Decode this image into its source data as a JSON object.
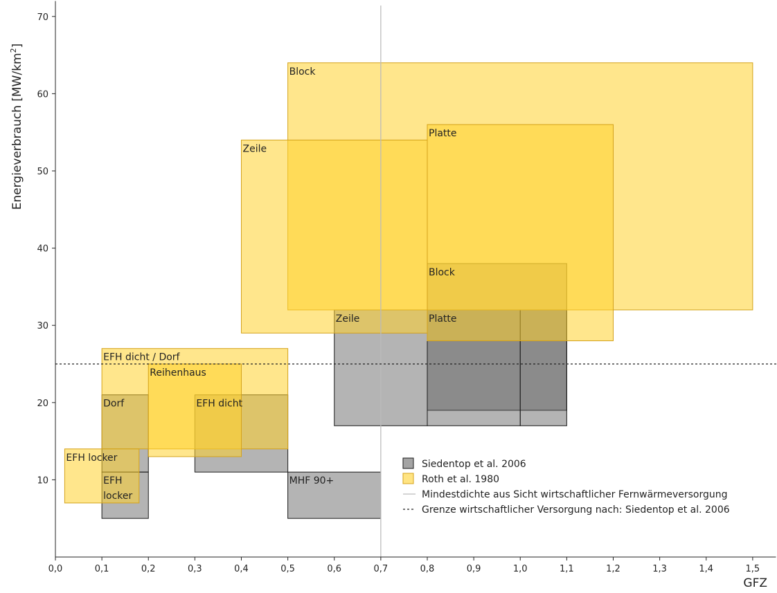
{
  "chart_data": {
    "type": "area",
    "xlabel": "GFZ",
    "ylabel_main": "Energieverbrauch [MW/km",
    "ylabel_sup": "2",
    "ylabel_end": "]",
    "xlim": [
      0,
      1.55
    ],
    "ylim": [
      0,
      72
    ],
    "x_ticks": [
      0,
      0.1,
      0.2,
      0.3,
      0.4,
      0.5,
      0.6,
      0.7,
      0.8,
      0.9,
      1.0,
      1.1,
      1.2,
      1.3,
      1.4,
      1.5
    ],
    "x_tick_labels": [
      "0,0",
      "0,1",
      "0,2",
      "0,3",
      "0,4",
      "0,5",
      "0,6",
      "0,7",
      "0,8",
      "0,9",
      "1,0",
      "1,1",
      "1,2",
      "1,3",
      "1,4",
      "1,5"
    ],
    "y_ticks": [
      10,
      20,
      30,
      40,
      50,
      60,
      70
    ],
    "y_tick_labels": [
      "10",
      "20",
      "30",
      "40",
      "50",
      "60",
      "70"
    ],
    "colors": {
      "roth_fill": "#ffd22e",
      "roth_stroke": "#d4a21a",
      "siedentop_fill": "#595959",
      "siedentop_stroke": "#1a1a1a",
      "vline": "#bbbbbb",
      "hline": "#222222"
    },
    "series": [
      {
        "name": "Siedentop et al. 2006",
        "boxes": [
          {
            "label": "Zeile",
            "label2": "",
            "x": [
              0.6,
              0.8
            ],
            "y": [
              17,
              32
            ]
          },
          {
            "label": "Block",
            "label2": "",
            "x": [
              0.8,
              1.1
            ],
            "y": [
              19,
              38
            ]
          },
          {
            "label": "Platte",
            "label2": "",
            "x": [
              0.8,
              1.0
            ],
            "y": [
              17,
              32
            ]
          },
          {
            "label": "",
            "label2": "",
            "x": [
              1.0,
              1.1
            ],
            "y": [
              17,
              32
            ]
          },
          {
            "label": "Dorf",
            "label2": "",
            "x": [
              0.1,
              0.2
            ],
            "y": [
              11,
              21
            ]
          },
          {
            "label": "EFH dicht",
            "label2": "",
            "x": [
              0.3,
              0.5
            ],
            "y": [
              11,
              21
            ]
          },
          {
            "label": "EFH",
            "label2": "locker",
            "x": [
              0.1,
              0.2
            ],
            "y": [
              5,
              11
            ]
          },
          {
            "label": "MHF 90+",
            "label2": "",
            "x": [
              0.5,
              0.7
            ],
            "y": [
              5,
              11
            ]
          }
        ]
      },
      {
        "name": "Roth et al. 1980",
        "boxes": [
          {
            "label": "Block",
            "label2": "",
            "x": [
              0.5,
              1.5
            ],
            "y": [
              32,
              64
            ]
          },
          {
            "label": "Zeile",
            "label2": "",
            "x": [
              0.4,
              0.8
            ],
            "y": [
              29,
              54
            ]
          },
          {
            "label": "Platte",
            "label2": "",
            "x": [
              0.8,
              1.2
            ],
            "y": [
              28,
              56
            ]
          },
          {
            "label": "EFH dicht / Dorf",
            "label2": "",
            "x": [
              0.1,
              0.5
            ],
            "y": [
              14,
              27
            ]
          },
          {
            "label": "Reihenhaus",
            "label2": "",
            "x": [
              0.2,
              0.4
            ],
            "y": [
              13,
              25
            ]
          },
          {
            "label": "EFH locker",
            "label2": "",
            "x": [
              0.02,
              0.18
            ],
            "y": [
              7,
              14
            ]
          }
        ]
      }
    ],
    "reference_lines": [
      {
        "name": "Mindestdichte aus Sicht wirtschaftlicher Fernwärmeversorgung",
        "orientation": "vertical",
        "value": 0.7,
        "style": "solid"
      },
      {
        "name": "Grenze wirtschaftlicher Versorgung nach: Siedentop et al. 2006",
        "orientation": "horizontal",
        "value": 25,
        "style": "dashed"
      }
    ],
    "legend": {
      "placement": "bottom-right",
      "items": [
        {
          "label": "Siedentop et al. 2006",
          "kind": "siedentop"
        },
        {
          "label": "Roth et al. 1980",
          "kind": "roth"
        },
        {
          "label": "Mindestdichte aus Sicht wirtschaftlicher Fernwärmeversorgung",
          "kind": "vline"
        },
        {
          "label": "Grenze wirtschaftlicher Versorgung nach: Siedentop et al. 2006",
          "kind": "hline"
        }
      ]
    }
  }
}
